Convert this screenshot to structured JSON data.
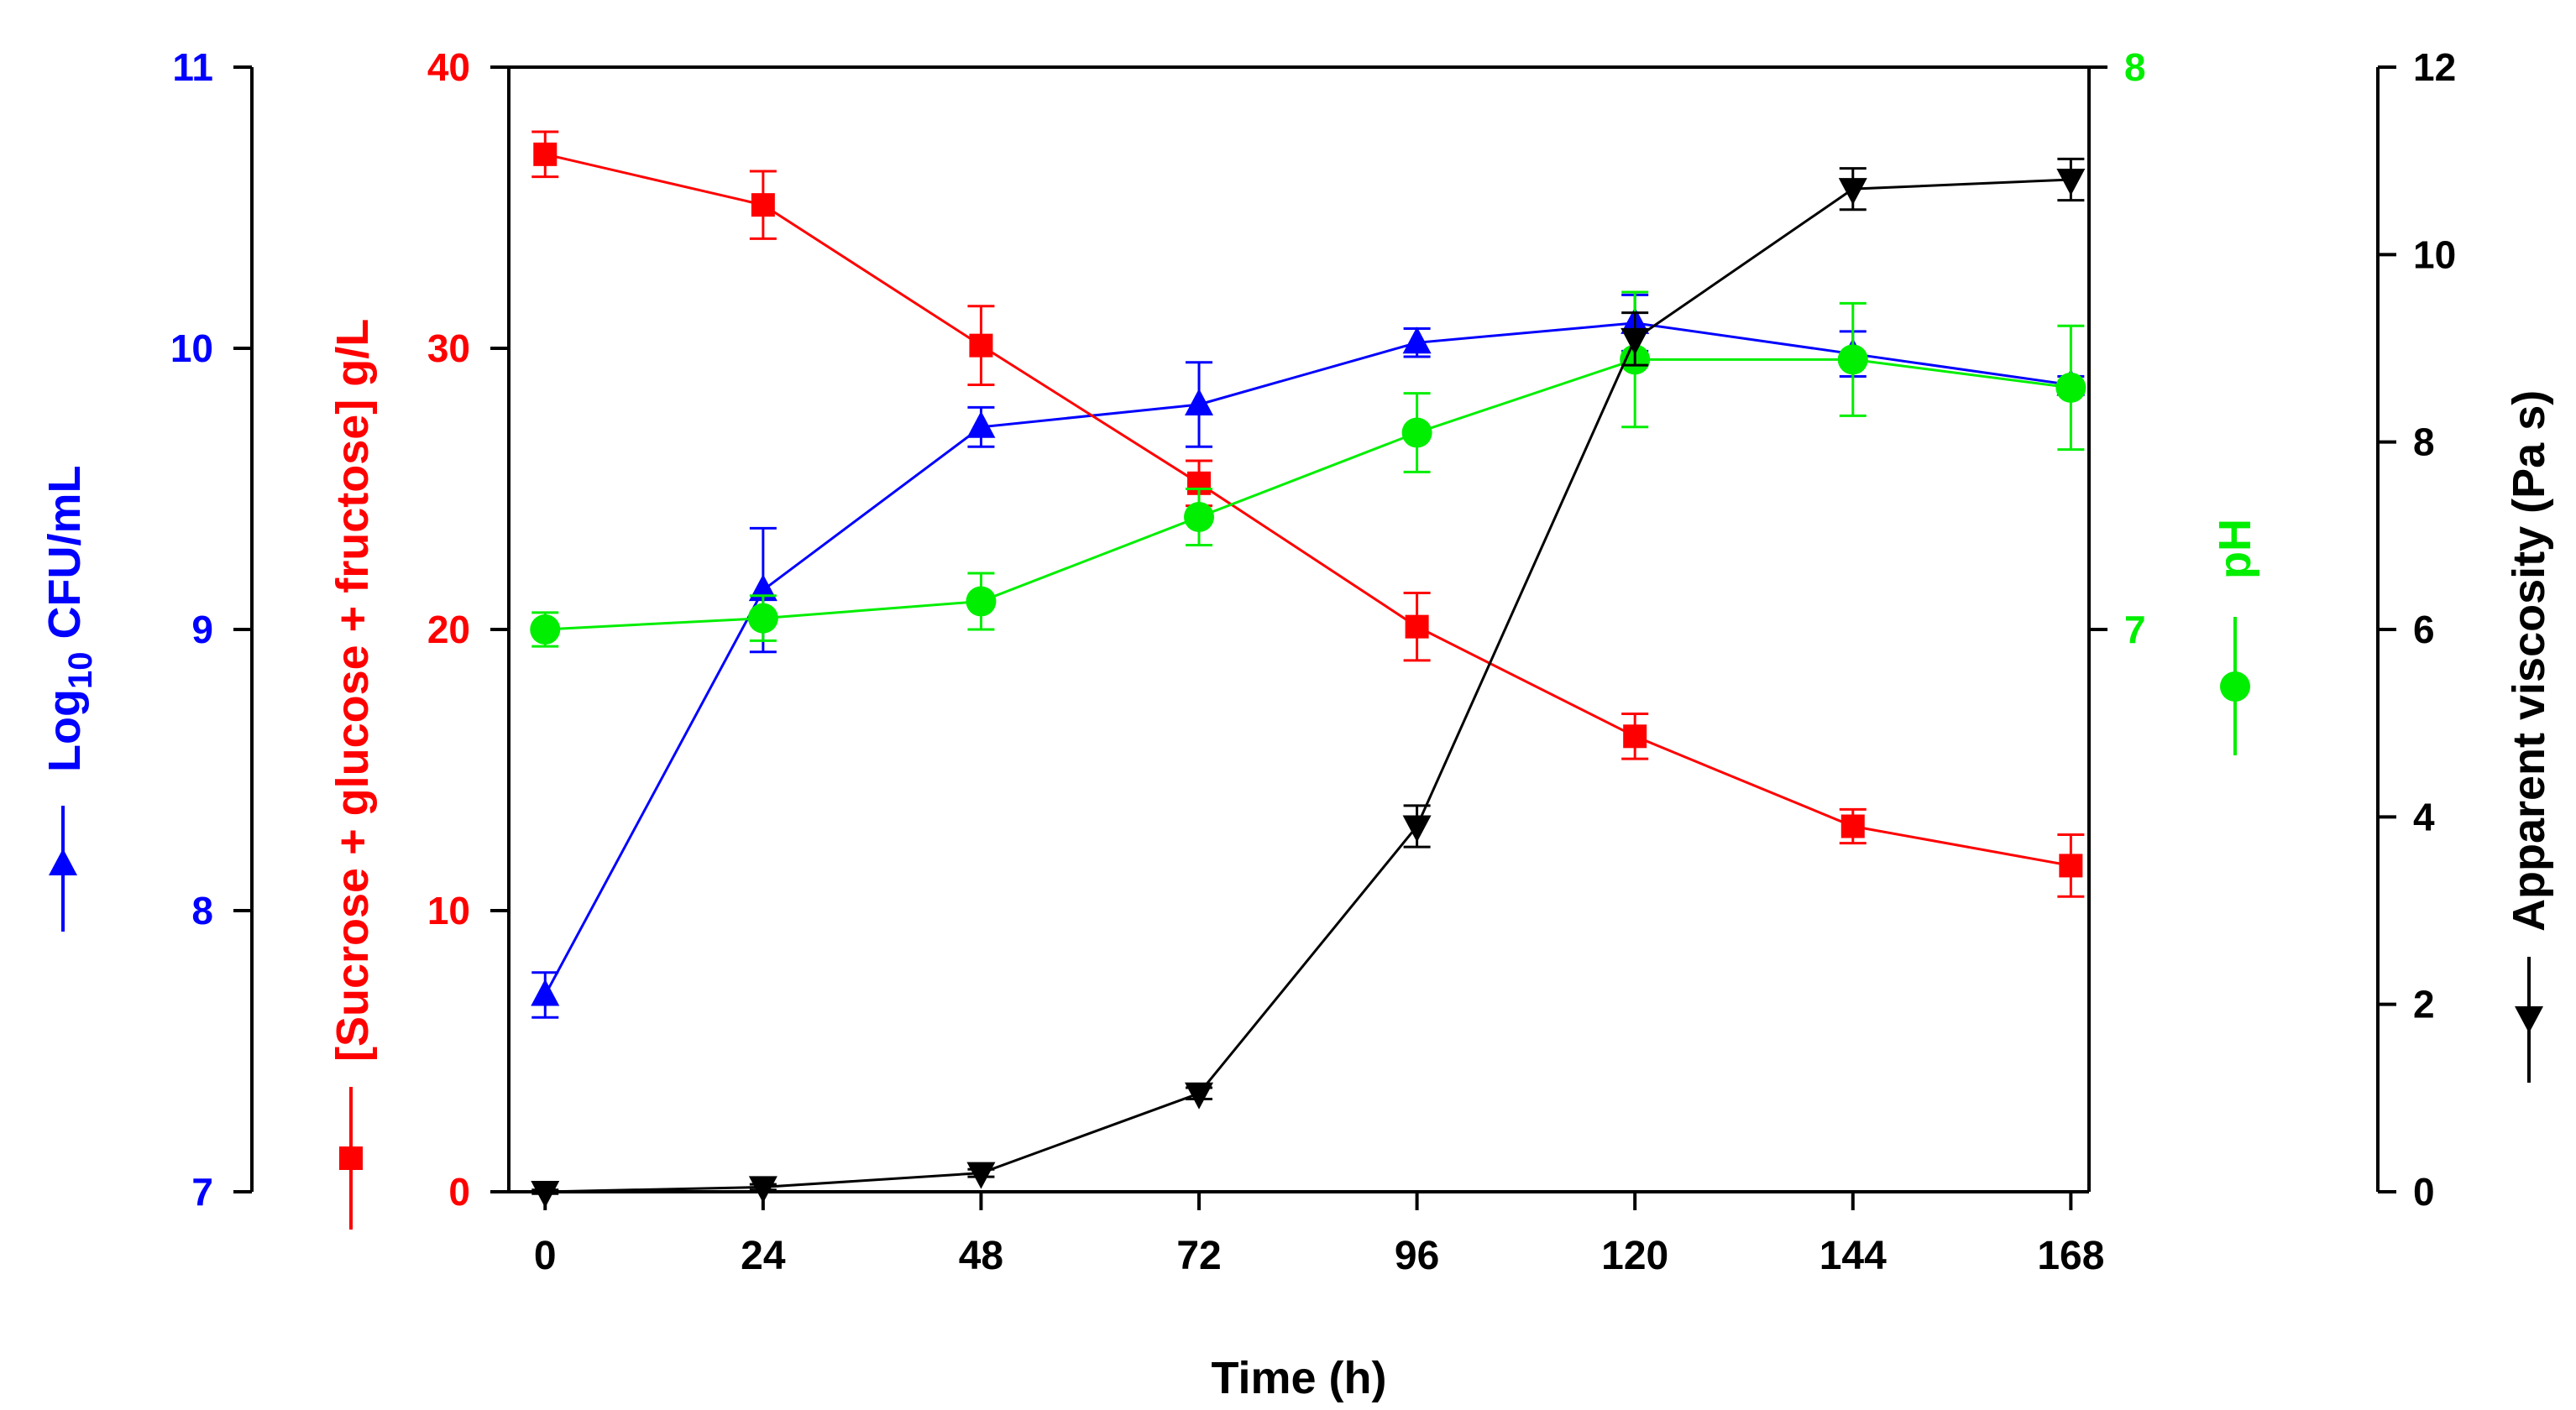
{
  "chart_data": {
    "type": "line",
    "title": "",
    "xlabel": "Time (h)",
    "x": [
      0,
      24,
      48,
      72,
      96,
      120,
      144,
      168
    ],
    "xlim": [
      -4,
      170
    ],
    "x_ticks": [
      "0",
      "24",
      "48",
      "72",
      "96",
      "120",
      "144",
      "168"
    ],
    "grid": false,
    "series": [
      {
        "name": "Log10 CFU/mL",
        "axis": "cfu",
        "marker": "triangle-up",
        "color": "#0000ff",
        "values": [
          7.7,
          9.14,
          9.72,
          9.8,
          10.02,
          10.09,
          9.98,
          9.87
        ],
        "errors": [
          0.08,
          0.22,
          0.07,
          0.15,
          0.05,
          0.1,
          0.08,
          0.03
        ]
      },
      {
        "name": "[Sucrose + glucose + fructose] g/L",
        "axis": "sugar",
        "marker": "square",
        "color": "#ff0000",
        "values": [
          36.9,
          35.1,
          30.1,
          25.2,
          20.1,
          16.2,
          13.0,
          11.6
        ],
        "errors": [
          0.8,
          1.2,
          1.4,
          0.8,
          1.2,
          0.8,
          0.6,
          1.1
        ]
      },
      {
        "name": "pH",
        "axis": "ph",
        "marker": "circle",
        "color": "#00ee00",
        "values": [
          7.0,
          7.02,
          7.05,
          7.2,
          7.35,
          7.48,
          7.48,
          7.43
        ],
        "errors": [
          0.03,
          0.04,
          0.05,
          0.05,
          0.07,
          0.12,
          0.1,
          0.11
        ]
      },
      {
        "name": "Apparent viscosity (Pa s)",
        "axis": "viscosity",
        "marker": "triangle-down",
        "color": "#000000",
        "values": [
          0.0,
          0.05,
          0.2,
          1.05,
          3.9,
          9.1,
          10.7,
          10.8
        ],
        "errors": [
          0.02,
          0.03,
          0.04,
          0.06,
          0.22,
          0.28,
          0.22,
          0.22
        ]
      }
    ],
    "axes": {
      "cfu": {
        "label_prefix": "Log",
        "label_sub": "10",
        "label_suffix": " CFU/mL",
        "color": "#0000ff",
        "ylim": [
          7,
          11
        ],
        "ticks": [
          "7",
          "8",
          "9",
          "10",
          "11"
        ]
      },
      "sugar": {
        "label": "[Sucrose + glucose + fructose] g/L",
        "color": "#ff0000",
        "ylim": [
          0,
          40
        ],
        "ticks": [
          "0",
          "10",
          "20",
          "30",
          "40"
        ]
      },
      "ph": {
        "label": "pH",
        "color": "#00ee00",
        "ylim": [
          6.0,
          8.0
        ],
        "ticks": [
          "7",
          "8"
        ],
        "tick_values": [
          7,
          8
        ]
      },
      "viscosity": {
        "label": "Apparent viscosity (Pa s)",
        "color": "#000000",
        "ylim": [
          0,
          12
        ],
        "ticks": [
          "0",
          "2",
          "4",
          "6",
          "8",
          "10",
          "12"
        ]
      }
    }
  }
}
